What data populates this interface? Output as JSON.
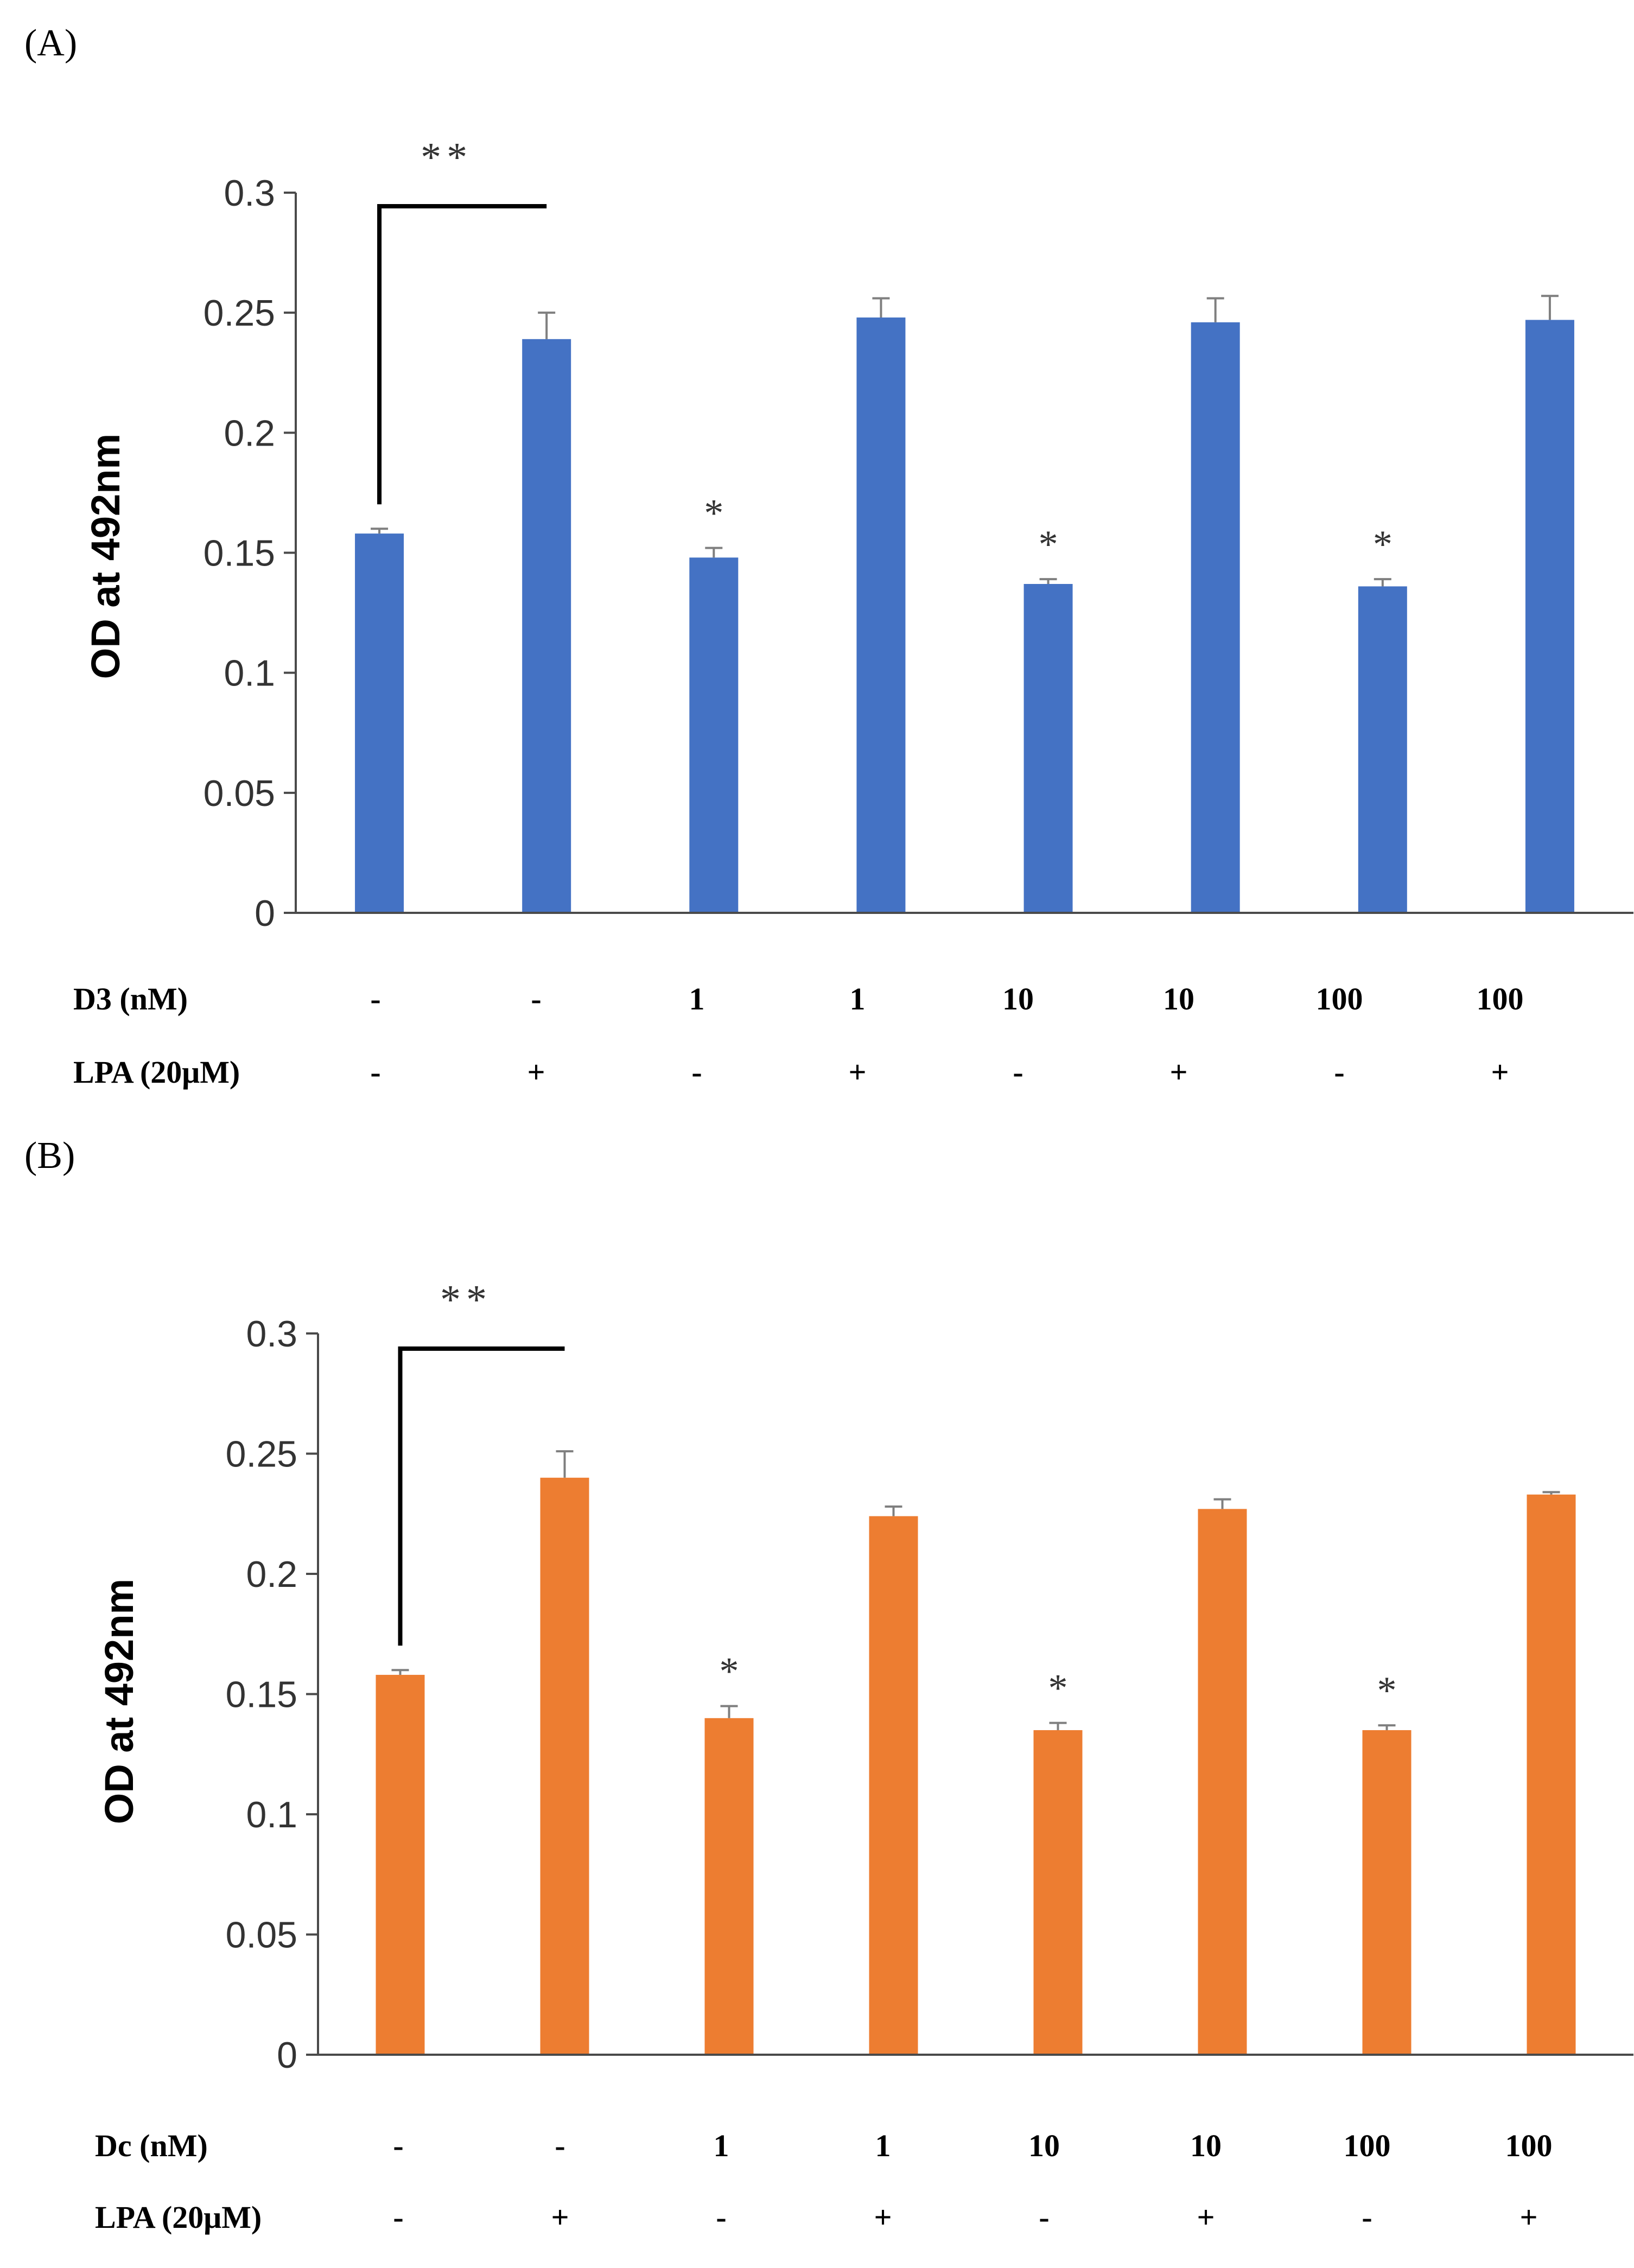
{
  "chart_data": [
    {
      "type": "bar",
      "panel_label": "(A)",
      "ylabel": "OD at 492nm",
      "ylim": [
        0,
        0.3
      ],
      "yticks": [
        "0",
        "0.05",
        "0.1",
        "0.15",
        "0.2",
        "0.25",
        "0.3"
      ],
      "color": "#4472C4",
      "values": [
        0.158,
        0.239,
        0.148,
        0.248,
        0.137,
        0.246,
        0.136,
        0.247
      ],
      "errors": [
        0.002,
        0.011,
        0.004,
        0.008,
        0.002,
        0.01,
        0.003,
        0.01
      ],
      "significance": [
        "",
        "",
        "*",
        "",
        "*",
        "",
        "*",
        ""
      ],
      "bracket": {
        "from": 0,
        "to": 1,
        "label": "**"
      },
      "rows": [
        {
          "label": "D3 (nM)",
          "values": [
            "-",
            "-",
            "1",
            "1",
            "10",
            "10",
            "100",
            "100"
          ]
        },
        {
          "label": "LPA (20μM)",
          "values": [
            "-",
            "+",
            "-",
            "+",
            "-",
            "+",
            "-",
            "+"
          ]
        }
      ]
    },
    {
      "type": "bar",
      "panel_label": "(B)",
      "ylabel": "OD at 492nm",
      "ylim": [
        0,
        0.3
      ],
      "yticks": [
        "0",
        "0.05",
        "0.1",
        "0.15",
        "0.2",
        "0.25",
        "0.3"
      ],
      "color": "#ED7D31",
      "values": [
        0.158,
        0.24,
        0.14,
        0.224,
        0.135,
        0.227,
        0.135,
        0.233
      ],
      "errors": [
        0.002,
        0.011,
        0.005,
        0.004,
        0.003,
        0.004,
        0.002,
        0.001
      ],
      "significance": [
        "",
        "",
        "*",
        "",
        "*",
        "",
        "*",
        ""
      ],
      "bracket": {
        "from": 0,
        "to": 1,
        "label": "**"
      },
      "rows": [
        {
          "label": "Dc (nM)",
          "values": [
            "-",
            "-",
            "1",
            "1",
            "10",
            "10",
            "100",
            "100"
          ]
        },
        {
          "label": "LPA (20μM)",
          "values": [
            "-",
            "+",
            "-",
            "+",
            "-",
            "+",
            "-",
            "+"
          ]
        }
      ]
    }
  ]
}
